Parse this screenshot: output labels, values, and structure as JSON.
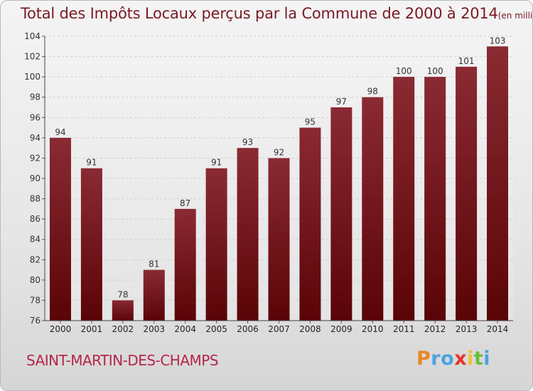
{
  "chart_data": {
    "type": "bar",
    "title": "Total des Impôts Locaux perçus par la Commune de 2000 à 2014",
    "subtitle": "(en milliers d'€)",
    "categories": [
      "2000",
      "2001",
      "2002",
      "2003",
      "2004",
      "2005",
      "2006",
      "2007",
      "2008",
      "2009",
      "2010",
      "2011",
      "2012",
      "2013",
      "2014"
    ],
    "values": [
      94,
      91,
      78,
      81,
      87,
      91,
      93,
      92,
      95,
      97,
      98,
      100,
      100,
      101,
      103
    ],
    "ylim": [
      76,
      104
    ],
    "yticks": [
      76,
      78,
      80,
      82,
      84,
      86,
      88,
      90,
      92,
      94,
      96,
      98,
      100,
      102,
      104
    ],
    "grid": true,
    "bar_color": "#6e0e16"
  },
  "footer": {
    "commune": "SAINT-MARTIN-DES-CHAMPS",
    "logo_letters": [
      {
        "ch": "P",
        "color": "#e8862a"
      },
      {
        "ch": "r",
        "color": "#4aa3df"
      },
      {
        "ch": "o",
        "color": "#4aa3df"
      },
      {
        "ch": "x",
        "color": "#e63329"
      },
      {
        "ch": "i",
        "color": "#f1c232"
      },
      {
        "ch": "t",
        "color": "#6abf3a"
      },
      {
        "ch": "i",
        "color": "#4aa3df"
      }
    ]
  }
}
